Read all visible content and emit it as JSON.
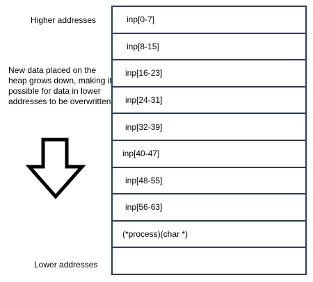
{
  "labels": {
    "higher": "Higher addresses",
    "lower": "Lower addresses",
    "note": "New data placed on the heap grows down, making it possible for data in lower addresses to be overwritten"
  },
  "memory_cells": [
    "inp[0-7]",
    "inp[8-15]",
    "inp[16-23]",
    "inp[24-31]",
    "inp[32-39]",
    "inp[40-47]",
    "inp[48-55]",
    "inp[56-63]",
    "(*process)(char *)",
    ""
  ],
  "colors": {
    "cell_border": "#2c3e57",
    "arrow_stroke": "#000000"
  },
  "icons": {
    "arrow": "down-arrow-icon"
  }
}
